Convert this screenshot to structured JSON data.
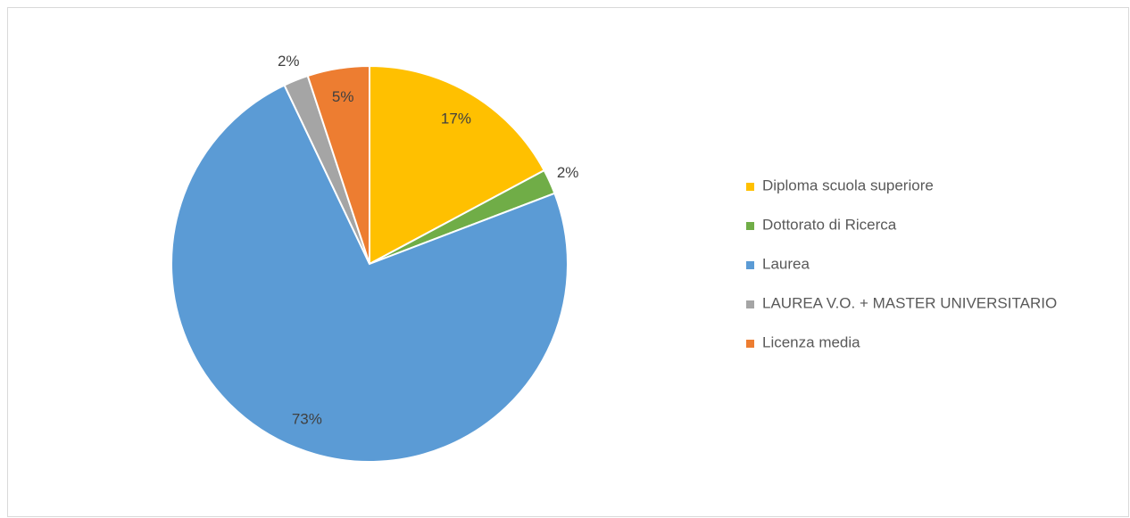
{
  "chart_data": {
    "type": "pie",
    "categories": [
      "Diploma scuola superiore",
      "Dottorato di Ricerca",
      "Laurea",
      "LAUREA V.O. + MASTER UNIVERSITARIO",
      "Licenza media"
    ],
    "values": [
      17,
      2,
      73,
      2,
      5
    ],
    "value_labels": [
      "17%",
      "2%",
      "73%",
      "2%",
      "5%"
    ],
    "colors": [
      "#ffc000",
      "#70ad47",
      "#5b9bd5",
      "#a5a5a5",
      "#ed7d31"
    ],
    "legend": "right"
  }
}
